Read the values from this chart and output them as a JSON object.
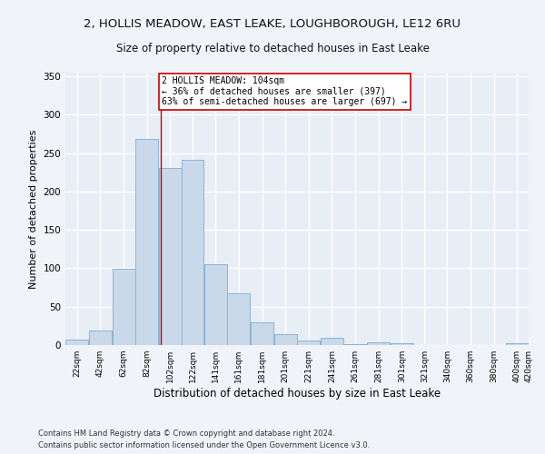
{
  "title_line1": "2, HOLLIS MEADOW, EAST LEAKE, LOUGHBOROUGH, LE12 6RU",
  "title_line2": "Size of property relative to detached houses in East Leake",
  "xlabel": "Distribution of detached houses by size in East Leake",
  "ylabel": "Number of detached properties",
  "bar_left_edges": [
    22,
    42,
    62,
    82,
    102,
    122,
    141,
    161,
    181,
    201,
    221,
    241,
    261,
    281,
    301,
    321,
    340,
    360,
    380,
    400
  ],
  "bar_widths": [
    20,
    20,
    20,
    20,
    20,
    19,
    20,
    20,
    20,
    20,
    20,
    20,
    20,
    20,
    20,
    19,
    20,
    20,
    20,
    20
  ],
  "bar_heights": [
    7,
    19,
    99,
    269,
    231,
    241,
    105,
    67,
    30,
    14,
    6,
    10,
    1,
    3,
    2,
    0,
    0,
    0,
    0,
    2
  ],
  "tick_labels": [
    "22sqm",
    "42sqm",
    "62sqm",
    "82sqm",
    "102sqm",
    "122sqm",
    "141sqm",
    "161sqm",
    "181sqm",
    "201sqm",
    "221sqm",
    "241sqm",
    "261sqm",
    "281sqm",
    "301sqm",
    "321sqm",
    "340sqm",
    "360sqm",
    "380sqm",
    "400sqm",
    "420sqm"
  ],
  "bar_color": "#c9d9ea",
  "bar_edge_color": "#8ab4d4",
  "background_color": "#e8eef6",
  "grid_color": "#ffffff",
  "marker_x": 104,
  "marker_color": "#cc0000",
  "annotation_text": "2 HOLLIS MEADOW: 104sqm\n← 36% of detached houses are smaller (397)\n63% of semi-detached houses are larger (697) →",
  "annotation_box_facecolor": "#ffffff",
  "annotation_box_edgecolor": "#cc0000",
  "ylim": [
    0,
    355
  ],
  "xlim": [
    22,
    420
  ],
  "yticks": [
    0,
    50,
    100,
    150,
    200,
    250,
    300,
    350
  ],
  "fig_facecolor": "#f0f4f8",
  "footer_line1": "Contains HM Land Registry data © Crown copyright and database right 2024.",
  "footer_line2": "Contains public sector information licensed under the Open Government Licence v3.0."
}
